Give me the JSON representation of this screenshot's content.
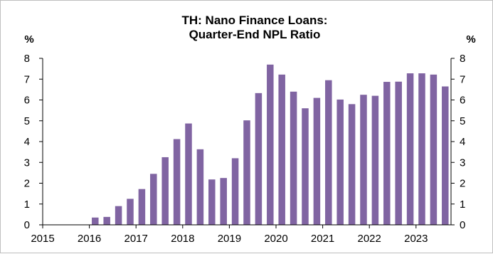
{
  "chart_data": {
    "type": "bar",
    "title_lines": [
      "TH: Nano Finance Loans:",
      "Quarter-End NPL Ratio"
    ],
    "ylabel_left": "%",
    "ylabel_right": "%",
    "ylim": [
      0,
      8
    ],
    "yticks": [
      0,
      1,
      2,
      3,
      4,
      5,
      6,
      7,
      8
    ],
    "xlim": [
      2015,
      2023.75
    ],
    "xticks": [
      2015,
      2016,
      2017,
      2018,
      2019,
      2020,
      2021,
      2022,
      2023
    ],
    "xtick_labels": [
      "2015",
      "2016",
      "2017",
      "2018",
      "2019",
      "2020",
      "2021",
      "2022",
      "2023"
    ],
    "bar_color": "#8064a2",
    "grid": false,
    "legend": "none",
    "x": [
      2016.0,
      2016.25,
      2016.5,
      2016.75,
      2017.0,
      2017.25,
      2017.5,
      2017.75,
      2018.0,
      2018.25,
      2018.5,
      2018.75,
      2019.0,
      2019.25,
      2019.5,
      2019.75,
      2020.0,
      2020.25,
      2020.5,
      2020.75,
      2021.0,
      2021.25,
      2021.5,
      2021.75,
      2022.0,
      2022.25,
      2022.5,
      2022.75,
      2023.0,
      2023.25,
      2023.5
    ],
    "values": [
      0.35,
      0.38,
      0.9,
      1.25,
      1.72,
      2.45,
      3.25,
      4.12,
      4.87,
      3.63,
      2.18,
      2.25,
      3.2,
      5.02,
      6.33,
      7.7,
      7.22,
      6.4,
      5.6,
      6.1,
      6.95,
      6.02,
      5.8,
      6.25,
      6.2,
      6.87,
      6.88,
      7.28,
      7.28,
      7.22,
      6.65
    ]
  }
}
